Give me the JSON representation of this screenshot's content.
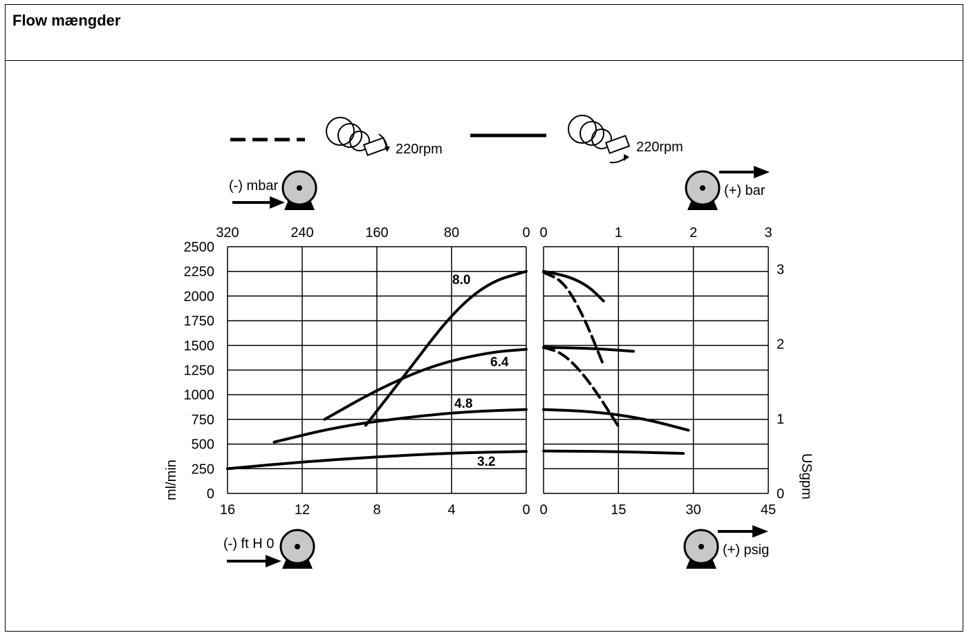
{
  "header": {
    "title": "Flow mængder"
  },
  "icons": {
    "pump": "pump-icon",
    "pump_head": "pump-head-icon",
    "arrow": "arrow-right-icon"
  },
  "chart_data": {
    "type": "line",
    "legend": {
      "dashed_label": "220rpm",
      "solid_label": "220rpm"
    },
    "left_panel": {
      "pump_top_label": "(-) mbar",
      "pump_bottom_label": "(-) ft H 0",
      "x_bottom_ticks": [
        "16",
        "12",
        "8",
        "4",
        "0"
      ],
      "x_top_ticks": [
        "320",
        "240",
        "160",
        "80",
        "0"
      ],
      "x_range_ftH2O": [
        16,
        0
      ],
      "series": [
        {
          "name": "8.0",
          "style": "solid",
          "points": [
            [
              8.6,
              690
            ],
            [
              6.5,
              1200
            ],
            [
              4.0,
              1820
            ],
            [
              2.0,
              2140
            ],
            [
              0,
              2250
            ]
          ]
        },
        {
          "name": "6.4",
          "style": "solid",
          "points": [
            [
              10.8,
              750
            ],
            [
              8.0,
              1050
            ],
            [
              5.0,
              1300
            ],
            [
              2.0,
              1430
            ],
            [
              0,
              1460
            ]
          ]
        },
        {
          "name": "4.8",
          "style": "solid",
          "points": [
            [
              13.5,
              520
            ],
            [
              10.0,
              680
            ],
            [
              6.0,
              780
            ],
            [
              3.0,
              830
            ],
            [
              0,
              850
            ]
          ]
        },
        {
          "name": "3.2",
          "style": "solid",
          "points": [
            [
              16.0,
              250
            ],
            [
              12.0,
              320
            ],
            [
              8.0,
              370
            ],
            [
              4.0,
              410
            ],
            [
              0,
              425
            ]
          ]
        }
      ]
    },
    "right_panel": {
      "pump_top_label": "(+) bar",
      "pump_bottom_label": "(+) psig",
      "x_bottom_ticks": [
        "0",
        "15",
        "30",
        "45"
      ],
      "x_top_ticks": [
        "0",
        "1",
        "2",
        "3"
      ],
      "x_range_psig": [
        0,
        45
      ],
      "series": [
        {
          "name": "8.0",
          "style": "solid",
          "points": [
            [
              0,
              2250
            ],
            [
              5,
              2200
            ],
            [
              9,
              2100
            ],
            [
              12,
              1950
            ]
          ]
        },
        {
          "name": "8.0",
          "style": "dashed",
          "points": [
            [
              0,
              2240
            ],
            [
              4,
              2150
            ],
            [
              8,
              1800
            ],
            [
              12,
              1300
            ]
          ]
        },
        {
          "name": "6.4",
          "style": "solid",
          "points": [
            [
              0,
              1480
            ],
            [
              10,
              1470
            ],
            [
              18,
              1440
            ]
          ]
        },
        {
          "name": "6.4",
          "style": "dashed",
          "points": [
            [
              0,
              1480
            ],
            [
              4,
              1420
            ],
            [
              9,
              1150
            ],
            [
              15,
              680
            ]
          ]
        },
        {
          "name": "4.8",
          "style": "solid",
          "points": [
            [
              0,
              850
            ],
            [
              10,
              830
            ],
            [
              20,
              760
            ],
            [
              29,
              640
            ]
          ]
        },
        {
          "name": "3.2",
          "style": "solid",
          "points": [
            [
              0,
              430
            ],
            [
              14,
              425
            ],
            [
              28,
              405
            ]
          ]
        }
      ]
    },
    "y_left": {
      "label": "ml/min",
      "ticks": [
        "0",
        "250",
        "500",
        "750",
        "1000",
        "1250",
        "1500",
        "1750",
        "2000",
        "2250",
        "2500"
      ],
      "range": [
        0,
        2500
      ]
    },
    "y_right": {
      "label": "USgpm",
      "ticks": [
        "0",
        "1",
        "2",
        "3"
      ],
      "range": [
        0,
        3.3
      ]
    },
    "curve_labels": [
      "8.0",
      "6.4",
      "4.8",
      "3.2"
    ],
    "grid": true
  }
}
